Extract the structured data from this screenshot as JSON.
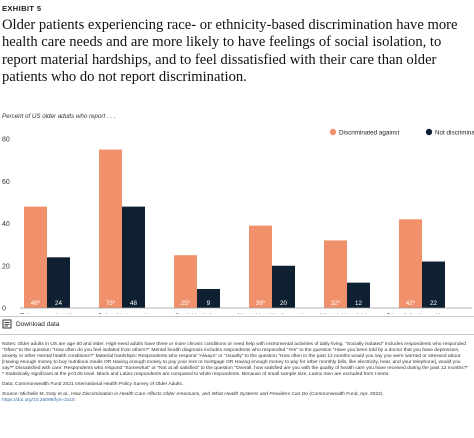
{
  "exhibit": {
    "label": "EXHIBIT 5",
    "headline": "Older patients experiencing race- or ethnicity-based discrimination have more health care needs and are more likely to have feelings of social isolation, to report material hardships, and to feel dissatisfied with their care than older patients who do not report discrimination.",
    "subtitle": "Percent of US older adults who report . . .",
    "download_label": "Download data"
  },
  "colors": {
    "discriminated": "#f0916b",
    "not_discriminated": "#102033",
    "axis": "#9a9a9a",
    "grid": "#e6e6e6"
  },
  "chart_data": {
    "type": "bar",
    "categories": [
      "Fair or poor health",
      "Being high-need",
      "Social isolation",
      "Mental health diagnosis",
      "Material hardships",
      "Dissatisfaction with care"
    ],
    "series": [
      {
        "name": "Discriminated against",
        "values": [
          48,
          75,
          25,
          39,
          32,
          42
        ],
        "labels": [
          "48*",
          "75*",
          "25*",
          "39*",
          "32*",
          "42*"
        ]
      },
      {
        "name": "Not discriminated against",
        "values": [
          24,
          48,
          9,
          20,
          12,
          22
        ],
        "labels": [
          "24",
          "48",
          "9",
          "20",
          "12",
          "22"
        ]
      }
    ],
    "yticks": [
      "0",
      "20",
      "40",
      "60",
      "80"
    ],
    "ylim": [
      0,
      80
    ],
    "xlabel": "",
    "ylabel": "",
    "legend_position": "top-right",
    "grid": false
  },
  "notes": {
    "paragraph": "Notes: Older adults in US are age 60 and older. High-need adults have three or more chronic conditions or need help with instrumental activities of daily living. \"Socially isolated\" includes respondents who responded \"Often\" to the question \"How often do you feel isolated from others?\" Mental health diagnosis includes respondents who responded \"Yes\" to the question \"Have you been told by a doctor that you have depression, anxiety or other mental health conditions?\" Material hardships: Respondents who respond \"Always\" or \"Usually\" to the question \"How often in the past 12 months would you say you were worried or stressed about [Having enough money to buy nutritious meals OR Having enough money to pay your rent or mortgage OR Having enough money to pay for other monthly bills, like electricity, heat, and your telephone], would you say?\" Dissatisfied with care: Respondents who respond \"Somewhat\" or \"Not at all satisfied\" to the question \"Overall, how satisfied are you with the quality of health care you have received during the past 12 months?\"",
    "significance": "* Statistically significant at the p<0.05 level. Black and Latinx respondents are compared to white respondents. Because of small sample size, Latinx men are excluded from t-tests.",
    "data_source": "Data: Commonwealth Fund 2021 International Health Policy Survey of Older Adults.",
    "source_prefix": "Source: Michelle M. Doty et al., ",
    "source_title": "How Discrimination in Health Care Affects Older Americans, and What Health Systems and Providers Can Do",
    "source_suffix": " (Commonwealth Fund, Apr. 2022).",
    "doi": "https://doi.org/10.26099/fym-2x15"
  }
}
